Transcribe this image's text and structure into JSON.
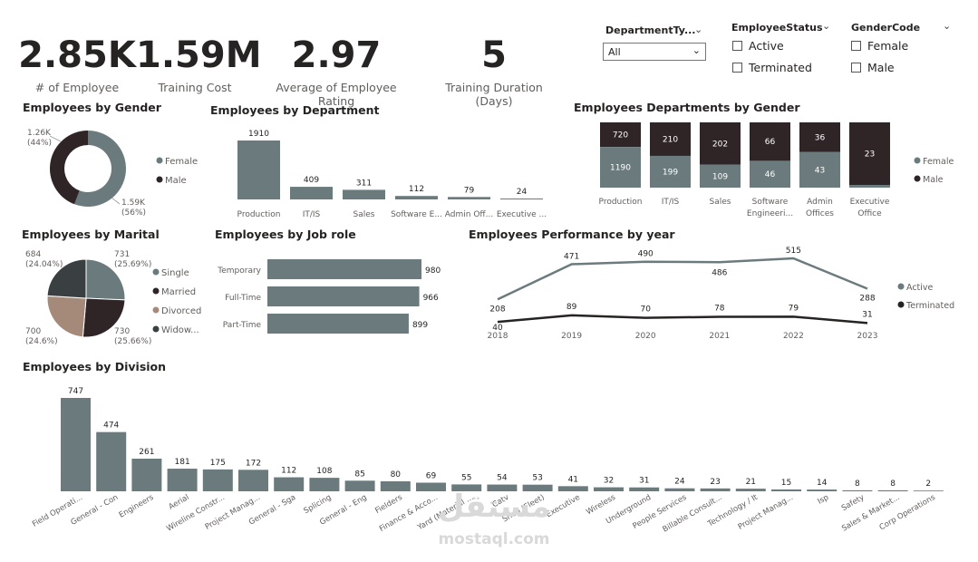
{
  "kpis": [
    {
      "value": "2.85K",
      "label": "# of Employee"
    },
    {
      "value": "1.59M",
      "label": "Training Cost"
    },
    {
      "value": "2.97",
      "label": "Average of Employee Rating"
    },
    {
      "value": "5",
      "label": "Training Duration (Days)"
    }
  ],
  "slicers": {
    "department": {
      "title": "DepartmentTy...",
      "selected": "All"
    },
    "status": {
      "title": "EmployeeStatus",
      "options": [
        "Active",
        "Terminated"
      ]
    },
    "gender": {
      "title": "GenderCode",
      "options": [
        "Female",
        "Male"
      ]
    }
  },
  "colors": {
    "female": "#6b7b7d",
    "male": "#2f2527",
    "divorced": "#a58a7a",
    "widowed": "#3a3f41",
    "bar": "#6b7b7d",
    "active": "#6b7b7d",
    "terminated": "#252423"
  },
  "watermark": {
    "arabic": "مستقل",
    "latin": "mostaql.com"
  },
  "chart_data": [
    {
      "id": "gender",
      "type": "pie",
      "title": "Employees by Gender",
      "labels": [
        "Female",
        "Male"
      ],
      "values": [
        1590,
        1260
      ],
      "display": [
        "1.59K",
        "1.26K"
      ],
      "percent": [
        "(56%)",
        "(44%)"
      ],
      "donut": true
    },
    {
      "id": "department",
      "type": "bar",
      "title": "Employees by Department",
      "categories": [
        "Production",
        "IT/IS",
        "Sales",
        "Software E...",
        "Admin Off...",
        "Executive ..."
      ],
      "values": [
        1910,
        409,
        311,
        112,
        79,
        24
      ]
    },
    {
      "id": "dept_gender",
      "type": "bar",
      "stacked": true,
      "title": "Employees Departments by Gender",
      "categories": [
        "Production",
        "IT/IS",
        "Sales",
        "Software Engineeri...",
        "Admin Offices",
        "Executive Office"
      ],
      "series": [
        {
          "name": "Female",
          "values": [
            1190,
            199,
            109,
            46,
            43,
            1
          ]
        },
        {
          "name": "Male",
          "values": [
            720,
            210,
            202,
            66,
            36,
            23
          ]
        }
      ],
      "female_labels": [
        "1190",
        "199",
        "109",
        "46",
        "43",
        ""
      ]
    },
    {
      "id": "marital",
      "type": "pie",
      "title": "Employees by Marital",
      "labels": [
        "Single",
        "Married",
        "Divorced",
        "Widow..."
      ],
      "values": [
        731,
        730,
        700,
        684
      ],
      "percent": [
        "(25.69%)",
        "(25.66%)",
        "(24.6%)",
        "(24.04%)"
      ]
    },
    {
      "id": "jobrole",
      "type": "bar",
      "orientation": "horizontal",
      "title": "Employees by Job role",
      "categories": [
        "Temporary",
        "Full-Time",
        "Part-Time"
      ],
      "values": [
        980,
        966,
        899
      ]
    },
    {
      "id": "performance",
      "type": "line",
      "title": "Employees Performance by year",
      "x": [
        "2018",
        "2019",
        "2020",
        "2021",
        "2022",
        "2023"
      ],
      "series": [
        {
          "name": "Active",
          "values": [
            208,
            471,
            490,
            486,
            515,
            288
          ]
        },
        {
          "name": "Terminated",
          "values": [
            40,
            89,
            70,
            78,
            79,
            31
          ]
        }
      ]
    },
    {
      "id": "division",
      "type": "bar",
      "title": "Employees by Division",
      "categories": [
        "Field Operati...",
        "General - Con",
        "Engineers",
        "Aerial",
        "Wireline Constr...",
        "Project Manag...",
        "General - Sga",
        "Splicing",
        "General - Eng",
        "Fielders",
        "Finance & Acco...",
        "Yard (Material ...",
        "Catv",
        "Shop (Fleet)",
        "Executive",
        "Wireless",
        "Underground",
        "People Services",
        "Billable Consult...",
        "Technology / It",
        "Project Manag...",
        "Isp",
        "Safety",
        "Sales & Market...",
        "Corp Operations"
      ],
      "values": [
        747,
        474,
        261,
        181,
        175,
        172,
        112,
        108,
        85,
        80,
        69,
        55,
        54,
        53,
        41,
        32,
        31,
        24,
        23,
        21,
        15,
        14,
        8,
        8,
        2
      ]
    }
  ]
}
